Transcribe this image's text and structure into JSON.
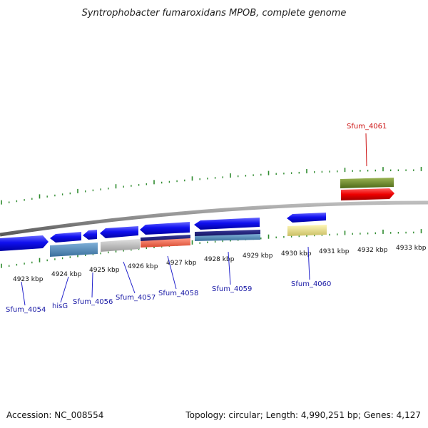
{
  "title": "Syntrophobacter fumaroxidans MPOB, complete genome",
  "footer": {
    "accession": "Accession: NC_008554",
    "topology": "Topology: circular; Length: 4,990,251 bp; Genes: 4,127"
  },
  "colors": {
    "backbone": "#8a8a8a",
    "tick": "#2e8b2e",
    "label_blue": "#1a1aa6",
    "label_red": "#cc1111",
    "leader_blue": "#2222cc",
    "leader_red": "#cc1111"
  },
  "ticks": [
    "4923 kbp",
    "4924 kbp",
    "4925 kbp",
    "4926 kbp",
    "4927 kbp",
    "4928 kbp",
    "4929 kbp",
    "4930 kbp",
    "4931 kbp",
    "4932 kbp",
    "4933 kbp"
  ],
  "genes": [
    {
      "label": "Sfum_4054",
      "color": "label_blue"
    },
    {
      "label": "hisG",
      "color": "label_blue"
    },
    {
      "label": "Sfum_4056",
      "color": "label_blue"
    },
    {
      "label": "Sfum_4057",
      "color": "label_blue"
    },
    {
      "label": "Sfum_4058",
      "color": "label_blue"
    },
    {
      "label": "Sfum_4059",
      "color": "label_blue"
    },
    {
      "label": "Sfum_4060",
      "color": "label_blue"
    },
    {
      "label": "Sfum_4061",
      "color": "label_red"
    }
  ]
}
